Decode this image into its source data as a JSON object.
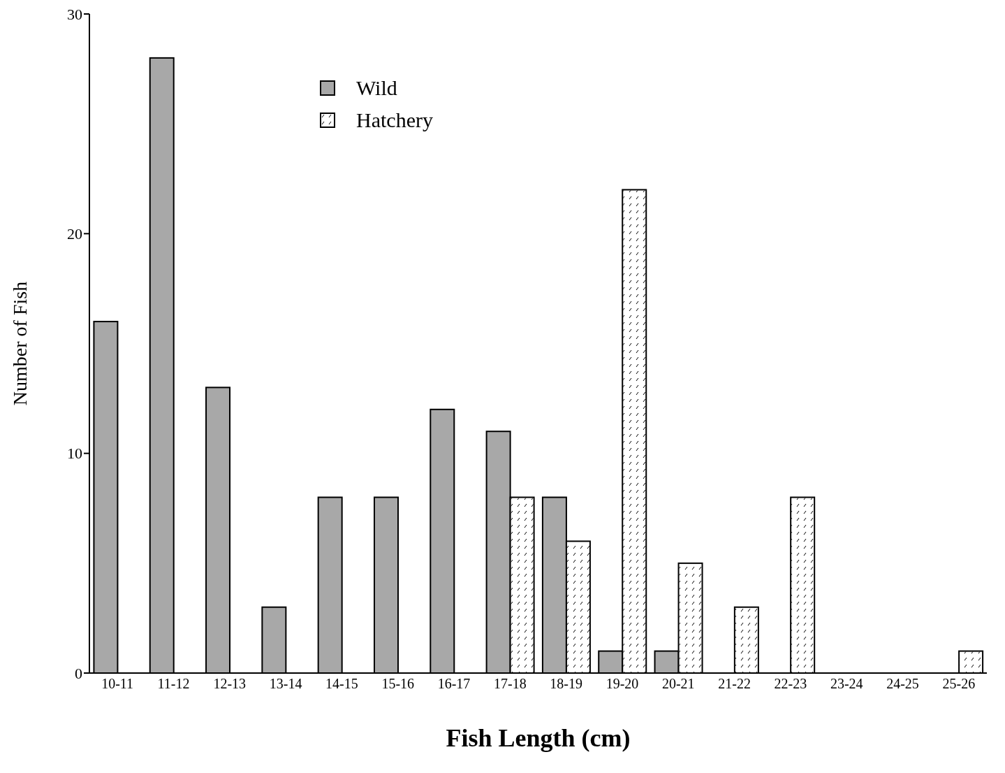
{
  "chart_data": {
    "type": "bar",
    "xlabel": "Fish Length (cm)",
    "ylabel": "Number of Fish",
    "categories": [
      "10-11",
      "11-12",
      "12-13",
      "13-14",
      "14-15",
      "15-16",
      "16-17",
      "17-18",
      "18-19",
      "19-20",
      "20-21",
      "21-22",
      "22-23",
      "23-24",
      "24-25",
      "25-26"
    ],
    "series": [
      {
        "name": "Wild",
        "color": "#a8a8a8",
        "values": [
          16,
          28,
          13,
          3,
          8,
          8,
          12,
          11,
          8,
          1,
          1,
          0,
          0,
          0,
          0,
          0
        ]
      },
      {
        "name": "Hatchery",
        "color": "#ffffff",
        "values": [
          0,
          0,
          0,
          0,
          0,
          0,
          0,
          8,
          6,
          22,
          5,
          3,
          8,
          0,
          0,
          1
        ]
      }
    ],
    "ylim": [
      0,
      30
    ],
    "yticks": [
      0,
      10,
      20,
      30
    ],
    "grid": false,
    "legend": "top left"
  }
}
